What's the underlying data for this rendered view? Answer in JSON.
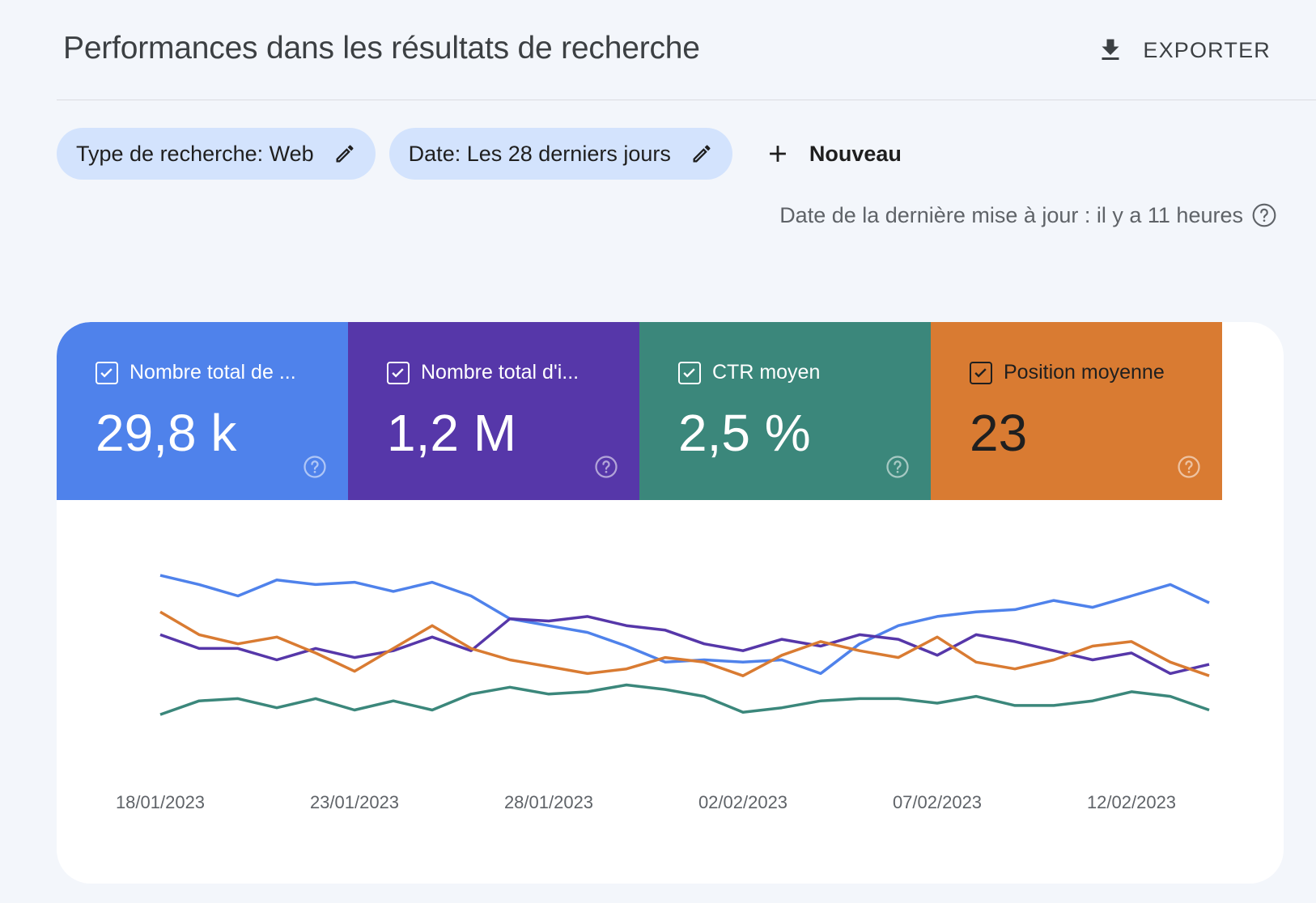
{
  "header": {
    "title": "Performances dans les résultats de recherche",
    "export_label": "EXPORTER"
  },
  "filters": {
    "chips": [
      {
        "label": "Type de recherche: Web"
      },
      {
        "label": "Date: Les 28 derniers jours"
      }
    ],
    "new_label": "Nouveau"
  },
  "last_update": "Date de la dernière mise à jour : il y a 11 heures",
  "metrics": [
    {
      "label": "Nombre total de ...",
      "value": "29,8 k",
      "color": "#4f82eb",
      "checked": true
    },
    {
      "label": "Nombre total d'i...",
      "value": "1,2 M",
      "color": "#5637a9",
      "checked": true
    },
    {
      "label": "CTR moyen",
      "value": "2,5 %",
      "color": "#3b877b",
      "checked": true
    },
    {
      "label": "Position moyenne",
      "value": "23",
      "color": "#d97b32",
      "checked": true
    }
  ],
  "chart_data": {
    "type": "line",
    "x_tick_labels": [
      "18/01/2023",
      "23/01/2023",
      "28/01/2023",
      "02/02/2023",
      "07/02/2023",
      "12/02/2023"
    ],
    "x_tick_day_index": [
      0,
      5,
      10,
      15,
      20,
      25
    ],
    "grid": false,
    "legend": "none",
    "series": [
      {
        "color": "#4f82eb",
        "values": [
          84,
          80,
          75,
          82,
          80,
          81,
          77,
          81,
          75,
          65,
          62,
          59,
          53,
          46,
          47,
          46,
          47,
          41,
          54,
          62,
          66,
          68,
          69,
          73,
          70,
          75,
          80,
          72
        ]
      },
      {
        "color": "#5637a9",
        "values": [
          58,
          52,
          52,
          47,
          52,
          48,
          51,
          57,
          51,
          65,
          64,
          66,
          62,
          60,
          54,
          51,
          56,
          53,
          58,
          56,
          49,
          58,
          55,
          51,
          47,
          50,
          41,
          45
        ]
      },
      {
        "color": "#3b877b",
        "values": [
          23,
          29,
          30,
          26,
          30,
          25,
          29,
          25,
          32,
          35,
          32,
          33,
          36,
          34,
          31,
          24,
          26,
          29,
          30,
          30,
          28,
          31,
          27,
          27,
          29,
          33,
          31,
          25
        ]
      },
      {
        "color": "#d97b32",
        "values": [
          68,
          58,
          54,
          57,
          50,
          42,
          52,
          62,
          52,
          47,
          44,
          41,
          43,
          48,
          46,
          40,
          49,
          55,
          51,
          48,
          57,
          46,
          43,
          47,
          53,
          55,
          46,
          40
        ]
      }
    ]
  }
}
